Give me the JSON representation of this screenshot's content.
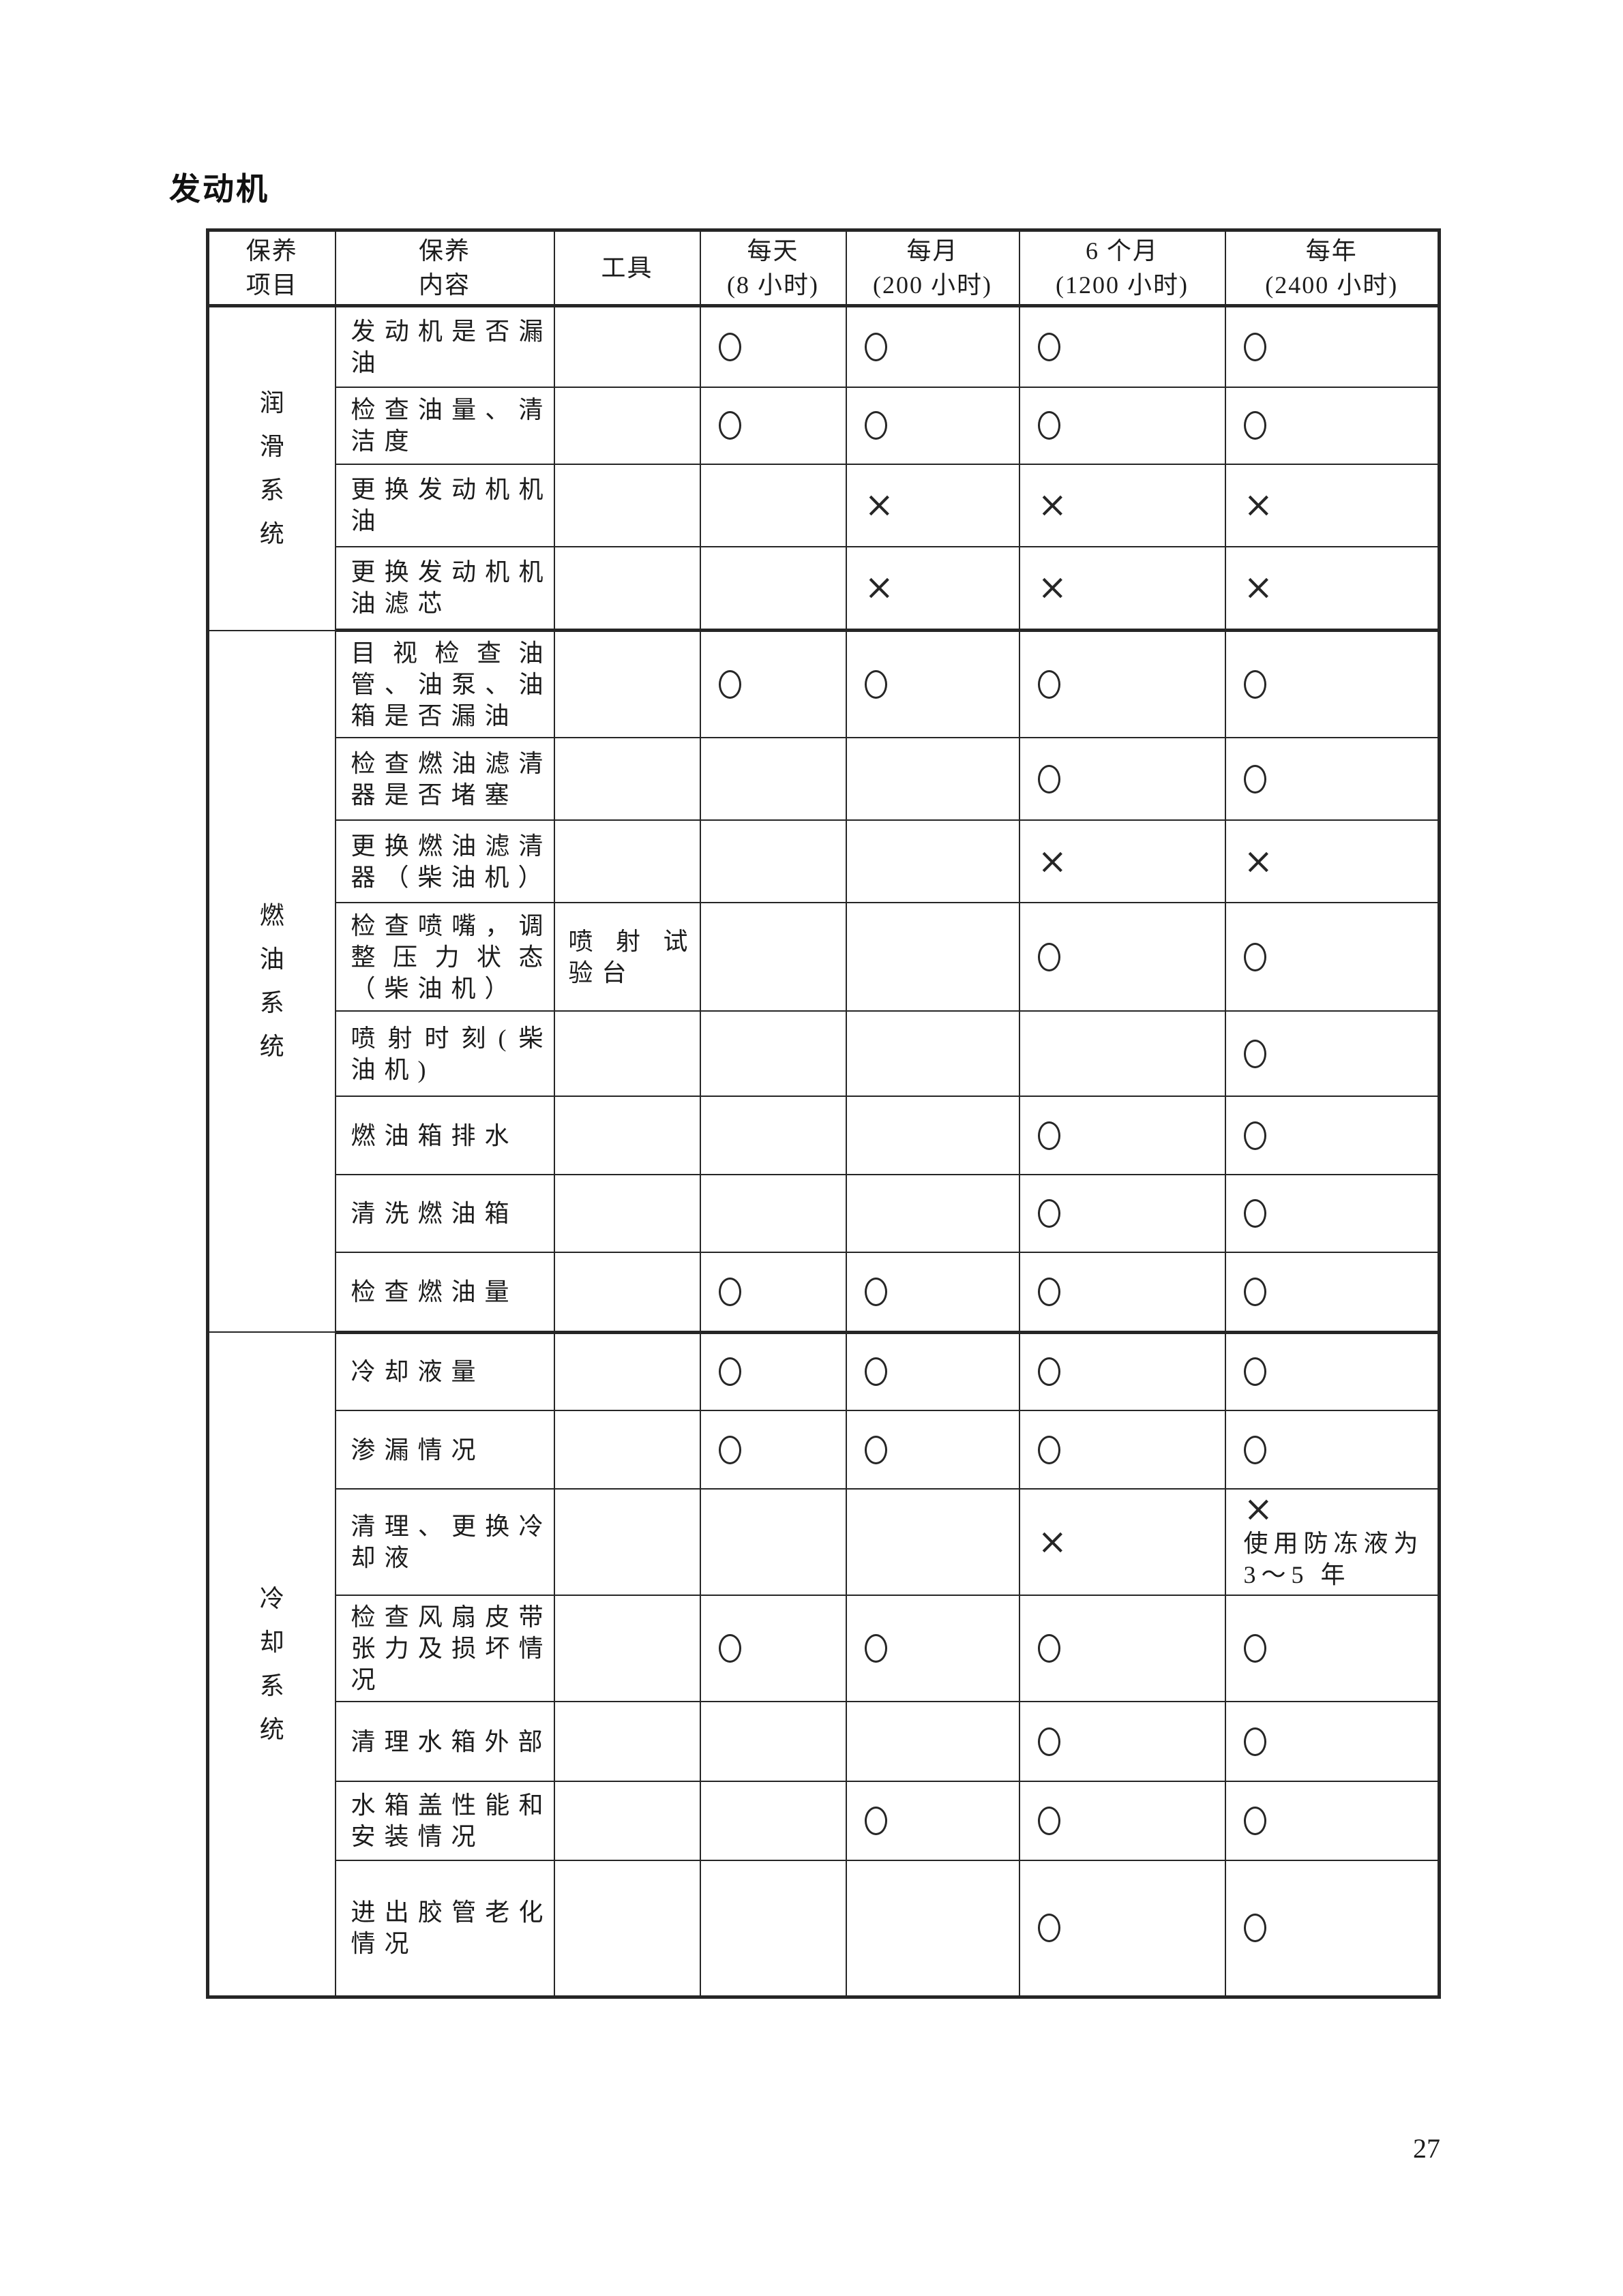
{
  "page": {
    "title": "发动机",
    "page_number": "27"
  },
  "marks": {
    "circle": "O",
    "cross": "X"
  },
  "table": {
    "headers": {
      "item": "保养\n项目",
      "content": "保养\n内容",
      "tool": "工具",
      "daily": "每天\n(8 小时)",
      "monthly": "每月\n(200 小时)",
      "six_months": "6 个月\n(1200 小时)",
      "yearly": "每年\n(2400 小时)"
    },
    "groups": [
      {
        "key": "lubrication-system",
        "label": "润滑系统",
        "rows": [
          {
            "content": "发动机是否漏油",
            "tool": "",
            "daily": "O",
            "monthly": "O",
            "six_months": "O",
            "yearly": "O"
          },
          {
            "content": "检查油量、清洁度",
            "tool": "",
            "daily": "O",
            "monthly": "O",
            "six_months": "O",
            "yearly": "O"
          },
          {
            "content": "更换发动机机油",
            "tool": "",
            "daily": "",
            "monthly": "X",
            "six_months": "X",
            "yearly": "X"
          },
          {
            "content": "更换发动机机油滤芯",
            "tool": "",
            "daily": "",
            "monthly": "X",
            "six_months": "X",
            "yearly": "X"
          }
        ]
      },
      {
        "key": "fuel-system",
        "label": "燃油系统",
        "rows": [
          {
            "content": "目视检查油管、油泵、油箱是否漏油",
            "tool": "",
            "daily": "O",
            "monthly": "O",
            "six_months": "O",
            "yearly": "O"
          },
          {
            "content": "检查燃油滤清器是否堵塞",
            "tool": "",
            "daily": "",
            "monthly": "",
            "six_months": "O",
            "yearly": "O"
          },
          {
            "content": "更换燃油滤清器（柴油机）",
            "tool": "",
            "daily": "",
            "monthly": "",
            "six_months": "X",
            "yearly": "X"
          },
          {
            "content": "检查喷嘴，调整压力状态（柴油机）",
            "tool": "喷射试验台",
            "daily": "",
            "monthly": "",
            "six_months": "O",
            "yearly": "O"
          },
          {
            "content": "喷射时刻(柴油机)",
            "tool": "",
            "daily": "",
            "monthly": "",
            "six_months": "",
            "yearly": "O"
          },
          {
            "content": "燃油箱排水",
            "tool": "",
            "daily": "",
            "monthly": "",
            "six_months": "O",
            "yearly": "O"
          },
          {
            "content": "清洗燃油箱",
            "tool": "",
            "daily": "",
            "monthly": "",
            "six_months": "O",
            "yearly": "O"
          },
          {
            "content": "检查燃油量",
            "tool": "",
            "daily": "O",
            "monthly": "O",
            "six_months": "O",
            "yearly": "O"
          }
        ]
      },
      {
        "key": "cooling-system",
        "label": "冷却系统",
        "rows": [
          {
            "content": "冷却液量",
            "tool": "",
            "daily": "O",
            "monthly": "O",
            "six_months": "O",
            "yearly": "O"
          },
          {
            "content": "渗漏情况",
            "tool": "",
            "daily": "O",
            "monthly": "O",
            "six_months": "O",
            "yearly": "O"
          },
          {
            "content": "清理、更换冷却液",
            "tool": "",
            "daily": "",
            "monthly": "",
            "six_months": "X",
            "yearly": "X",
            "yearly_note": "使用防冻液为3～5 年"
          },
          {
            "content": "检查风扇皮带张力及损坏情况",
            "tool": "",
            "daily": "O",
            "monthly": "O",
            "six_months": "O",
            "yearly": "O"
          },
          {
            "content": "清理水箱外部",
            "tool": "",
            "daily": "",
            "monthly": "",
            "six_months": "O",
            "yearly": "O"
          },
          {
            "content": "水箱盖性能和安装情况",
            "tool": "",
            "daily": "",
            "monthly": "O",
            "six_months": "O",
            "yearly": "O"
          },
          {
            "content": "进出胶管老化情况",
            "tool": "",
            "daily": "",
            "monthly": "",
            "six_months": "O",
            "yearly": "O"
          }
        ]
      }
    ]
  }
}
